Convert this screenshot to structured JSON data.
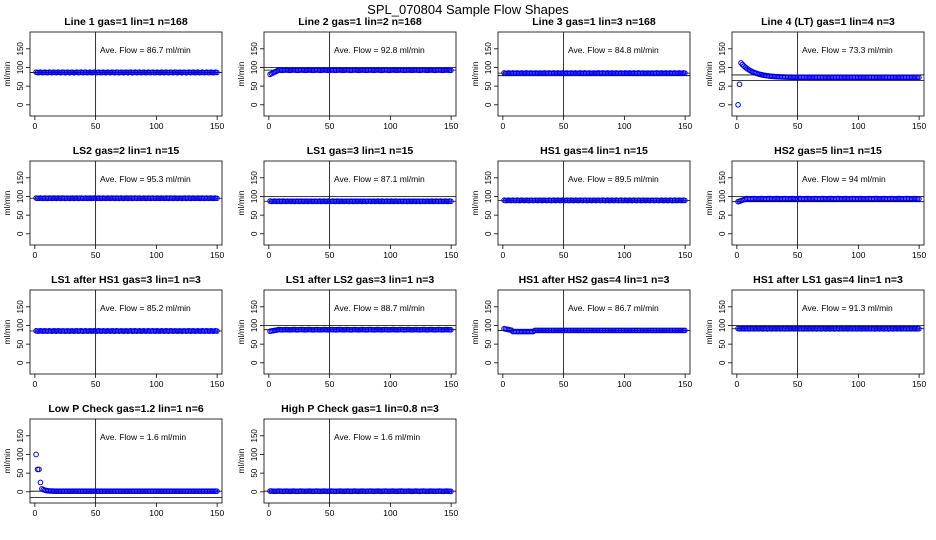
{
  "page": {
    "title": "SPL_070804  Sample Flow Shapes"
  },
  "axis_common": {
    "ylabel": "ml/min",
    "xticks": [
      0,
      50,
      100,
      150
    ],
    "yticks": [
      0,
      50,
      100,
      150
    ],
    "xlim": [
      -4,
      154
    ],
    "ylim": [
      -30,
      195
    ],
    "point_color": "#0000ee"
  },
  "chart_data": [
    {
      "type": "scatter",
      "title": "Line 1 gas=1 lin=1 n=168",
      "annotation": "Ave. Flow =  86.7  ml/min",
      "ave": 86.7,
      "vline": 50,
      "hlines": [
        86.7
      ],
      "shape": "flat",
      "x": [
        0,
        150
      ],
      "y_range": [
        82,
        90
      ]
    },
    {
      "type": "scatter",
      "title": "Line 2 gas=1 lin=2 n=168",
      "annotation": "Ave. Flow =  92.8  ml/min",
      "ave": 92.8,
      "vline": 50,
      "hlines": [
        100,
        92.8
      ],
      "shape": "rise",
      "x": [
        0,
        150
      ],
      "y_range": [
        80,
        94
      ]
    },
    {
      "type": "scatter",
      "title": "Line 3 gas=1 lin=3 n=168",
      "annotation": "Ave. Flow =  84.8  ml/min",
      "ave": 84.8,
      "vline": 50,
      "hlines": [
        84.8,
        78
      ],
      "shape": "flat",
      "x": [
        0,
        150
      ],
      "y_range": [
        82,
        88
      ]
    },
    {
      "type": "scatter",
      "title": "Line 4 (LT) gas=1 lin=4 n=3",
      "annotation": "Ave. Flow =  73.3  ml/min",
      "ave": 73.3,
      "vline": 50,
      "hlines": [
        80,
        65
      ],
      "shape": "spike-decay",
      "x": [
        0,
        150
      ],
      "y_range": [
        0,
        110
      ]
    },
    {
      "type": "scatter",
      "title": "LS2 gas=2 lin=1 n=15",
      "annotation": "Ave. Flow =  95.3  ml/min",
      "ave": 95.3,
      "vline": 50,
      "hlines": [
        95.3
      ],
      "shape": "flat",
      "x": [
        0,
        150
      ],
      "y_range": [
        93,
        98
      ]
    },
    {
      "type": "scatter",
      "title": "LS1 gas=3 lin=1 n=15",
      "annotation": "Ave. Flow =  87.1  ml/min",
      "ave": 87.1,
      "vline": 50,
      "hlines": [
        100,
        87.1
      ],
      "shape": "flat",
      "x": [
        0,
        150
      ],
      "y_range": [
        85,
        90
      ]
    },
    {
      "type": "scatter",
      "title": "HS1 gas=4 lin=1 n=15",
      "annotation": "Ave. Flow =  89.5  ml/min",
      "ave": 89.5,
      "vline": 50,
      "hlines": [
        89.5
      ],
      "shape": "flat",
      "x": [
        0,
        150
      ],
      "y_range": [
        87,
        92
      ]
    },
    {
      "type": "scatter",
      "title": "HS2 gas=5 lin=1 n=15",
      "annotation": "Ave. Flow =  94  ml/min",
      "ave": 94,
      "vline": 50,
      "hlines": [
        100,
        86
      ],
      "shape": "rise",
      "x": [
        0,
        150
      ],
      "y_range": [
        85,
        97
      ]
    },
    {
      "type": "scatter",
      "title": "LS1 after HS1 gas=3 lin=1 n=3",
      "annotation": "Ave. Flow =  85.2  ml/min",
      "ave": 85.2,
      "vline": 50,
      "hlines": [
        85.2
      ],
      "shape": "flat",
      "x": [
        0,
        150
      ],
      "y_range": [
        83,
        88
      ]
    },
    {
      "type": "scatter",
      "title": "LS1 after LS2 gas=3 lin=1 n=3",
      "annotation": "Ave. Flow =  88.7  ml/min",
      "ave": 88.7,
      "vline": 50,
      "hlines": [
        100,
        88.7
      ],
      "shape": "rise",
      "x": [
        0,
        150
      ],
      "y_range": [
        84,
        91
      ]
    },
    {
      "type": "scatter",
      "title": "HS1 after HS2 gas=4 lin=1 n=3",
      "annotation": "Ave. Flow =  86.7  ml/min",
      "ave": 86.7,
      "vline": 50,
      "hlines": [
        86.7
      ],
      "shape": "dip",
      "x": [
        0,
        150
      ],
      "y_range": [
        80,
        92
      ]
    },
    {
      "type": "scatter",
      "title": "HS1 after LS1 gas=4 lin=1 n=3",
      "annotation": "Ave. Flow =  91.3  ml/min",
      "ave": 91.3,
      "vline": 50,
      "hlines": [
        100,
        91.3
      ],
      "shape": "flat",
      "x": [
        0,
        150
      ],
      "y_range": [
        89,
        94
      ]
    },
    {
      "type": "scatter",
      "title": "Low P Check gas=1.2 lin=1 n=6",
      "annotation": "Ave. Flow =  1.6  ml/min",
      "ave": 1.6,
      "vline": 50,
      "hlines": [
        1.6,
        -15
      ],
      "shape": "spike-low",
      "x": [
        0,
        150
      ],
      "y_range": [
        0,
        100
      ]
    },
    {
      "type": "scatter",
      "title": "High P Check gas=1 lin=0.8 n=3",
      "annotation": "Ave. Flow =  1.6  ml/min",
      "ave": 1.6,
      "vline": 50,
      "hlines": [
        1.6
      ],
      "shape": "flat-low",
      "x": [
        0,
        150
      ],
      "y_range": [
        0,
        5
      ]
    }
  ]
}
